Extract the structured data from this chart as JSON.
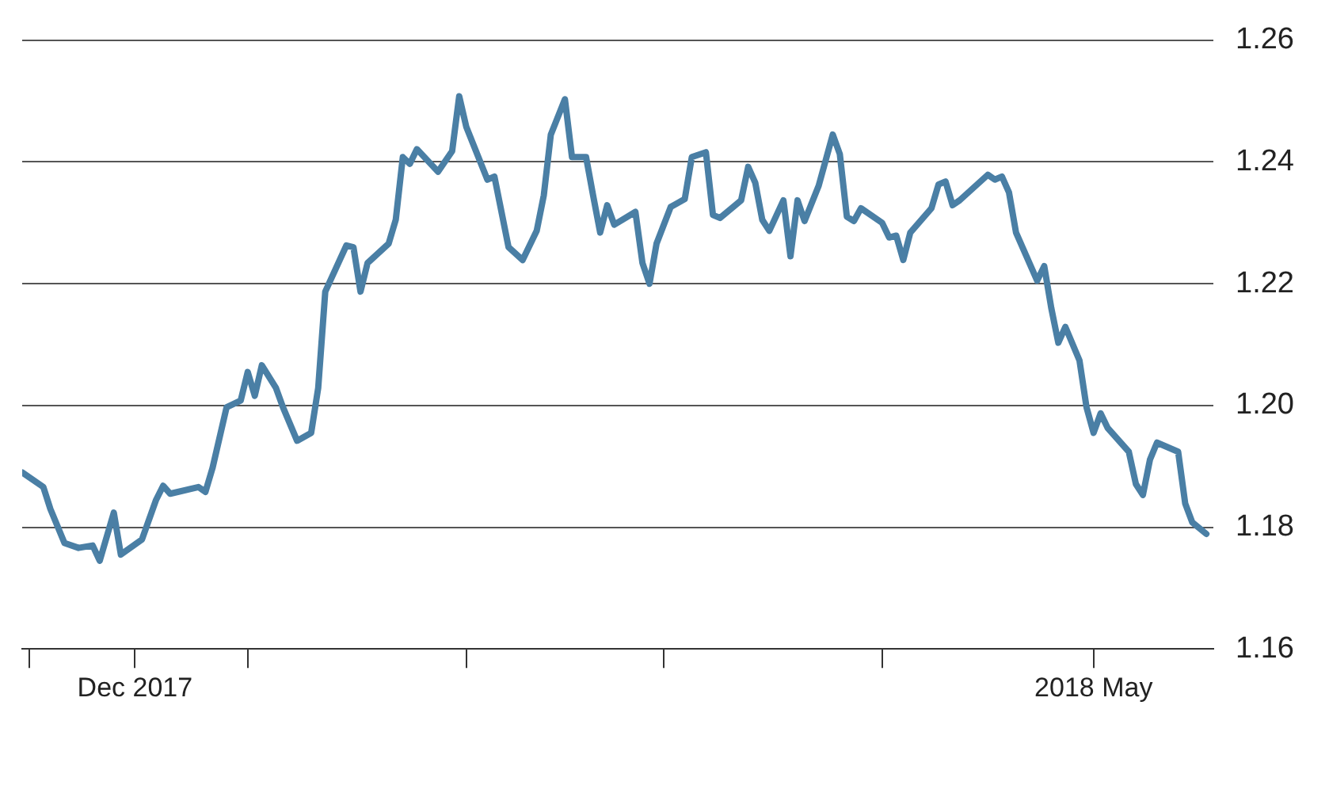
{
  "chart_data": {
    "type": "line",
    "x": [
      "2017-11-30",
      "2017-12-03",
      "2017-12-04",
      "2017-12-06",
      "2017-12-08",
      "2017-12-10",
      "2017-12-11",
      "2017-12-13",
      "2017-12-14",
      "2017-12-17",
      "2017-12-19",
      "2017-12-20",
      "2017-12-21",
      "2017-12-25",
      "2017-12-26",
      "2017-12-27",
      "2017-12-29",
      "2017-12-31",
      "2018-01-01",
      "2018-01-02",
      "2018-01-03",
      "2018-01-05",
      "2018-01-06",
      "2018-01-08",
      "2018-01-10",
      "2018-01-11",
      "2018-01-12",
      "2018-01-15",
      "2018-01-16",
      "2018-01-17",
      "2018-01-18",
      "2018-01-21",
      "2018-01-22",
      "2018-01-23",
      "2018-01-24",
      "2018-01-25",
      "2018-01-28",
      "2018-01-30",
      "2018-01-31",
      "2018-02-01",
      "2018-02-04",
      "2018-02-05",
      "2018-02-07",
      "2018-02-09",
      "2018-02-11",
      "2018-02-12",
      "2018-02-13",
      "2018-02-15",
      "2018-02-16",
      "2018-02-18",
      "2018-02-19",
      "2018-02-20",
      "2018-02-21",
      "2018-02-22",
      "2018-02-25",
      "2018-02-26",
      "2018-02-27",
      "2018-02-28",
      "2018-03-02",
      "2018-03-04",
      "2018-03-05",
      "2018-03-07",
      "2018-03-08",
      "2018-03-09",
      "2018-03-12",
      "2018-03-13",
      "2018-03-14",
      "2018-03-15",
      "2018-03-16",
      "2018-03-18",
      "2018-03-19",
      "2018-03-20",
      "2018-03-21",
      "2018-03-23",
      "2018-03-25",
      "2018-03-26",
      "2018-03-27",
      "2018-03-28",
      "2018-03-29",
      "2018-04-01",
      "2018-04-02",
      "2018-04-03",
      "2018-04-04",
      "2018-04-05",
      "2018-04-08",
      "2018-04-09",
      "2018-04-10",
      "2018-04-11",
      "2018-04-12",
      "2018-04-16",
      "2018-04-17",
      "2018-04-18",
      "2018-04-19",
      "2018-04-20",
      "2018-04-23",
      "2018-04-24",
      "2018-04-25",
      "2018-04-26",
      "2018-04-27",
      "2018-04-29",
      "2018-04-30",
      "2018-05-01",
      "2018-05-02",
      "2018-05-03",
      "2018-05-06",
      "2018-05-07",
      "2018-05-08",
      "2018-05-09",
      "2018-05-10",
      "2018-05-13",
      "2018-05-14",
      "2018-05-15",
      "2018-05-17"
    ],
    "series": [
      {
        "color": "#4a7fa5",
        "values": [
          1.189,
          1.1866,
          1.183,
          1.1774,
          1.1766,
          1.177,
          1.1745,
          1.1824,
          1.1755,
          1.178,
          1.1845,
          1.1868,
          1.1855,
          1.1866,
          1.1858,
          1.1897,
          1.1997,
          1.2008,
          1.2055,
          1.2016,
          1.2066,
          1.2029,
          1.1997,
          1.1942,
          1.1955,
          1.2029,
          1.2187,
          1.2263,
          1.226,
          1.2187,
          1.2234,
          1.2266,
          1.2305,
          1.2408,
          1.2397,
          1.2421,
          1.2384,
          1.2418,
          1.2508,
          1.2458,
          1.2371,
          1.2376,
          1.226,
          1.2239,
          1.2287,
          1.2345,
          1.2445,
          1.2503,
          1.2408,
          1.2408,
          1.2345,
          1.2284,
          1.2329,
          1.2297,
          1.2318,
          1.2234,
          1.22,
          1.2266,
          1.2326,
          1.2339,
          1.2408,
          1.2416,
          1.2313,
          1.2308,
          1.2337,
          1.2392,
          1.2366,
          1.2305,
          1.2287,
          1.2337,
          1.2245,
          1.2337,
          1.2303,
          1.2361,
          1.2445,
          1.2413,
          1.231,
          1.2303,
          1.2324,
          1.23,
          1.2276,
          1.2279,
          1.2239,
          1.2284,
          1.2324,
          1.2363,
          1.2368,
          1.2329,
          1.2337,
          1.2379,
          1.2371,
          1.2376,
          1.235,
          1.2284,
          1.2205,
          1.2229,
          1.216,
          1.2103,
          1.2129,
          1.2074,
          1.1997,
          1.1955,
          1.1987,
          1.1963,
          1.1924,
          1.1871,
          1.1853,
          1.1911,
          1.1939,
          1.1924,
          1.1839,
          1.1808,
          1.1789
        ]
      }
    ],
    "xlim": [
      "2017-11-30",
      "2018-05-18"
    ],
    "xticks": [
      {
        "value": "2017-12-01",
        "label": null
      },
      {
        "value": "2017-12-16",
        "label": "Dec 2017"
      },
      {
        "value": "2018-01-01",
        "label": null
      },
      {
        "value": "2018-02-01",
        "label": null
      },
      {
        "value": "2018-03-01",
        "label": null
      },
      {
        "value": "2018-04-01",
        "label": null
      },
      {
        "value": "2018-05-01",
        "label": "2018 May"
      }
    ],
    "ylim": [
      1.16,
      1.26
    ],
    "yticks": [
      1.16,
      1.18,
      {
        "value": 1.2,
        "label": "1.20"
      },
      1.22,
      1.24,
      1.26
    ],
    "grid": "y",
    "marker": "none",
    "line_style": "solid"
  }
}
